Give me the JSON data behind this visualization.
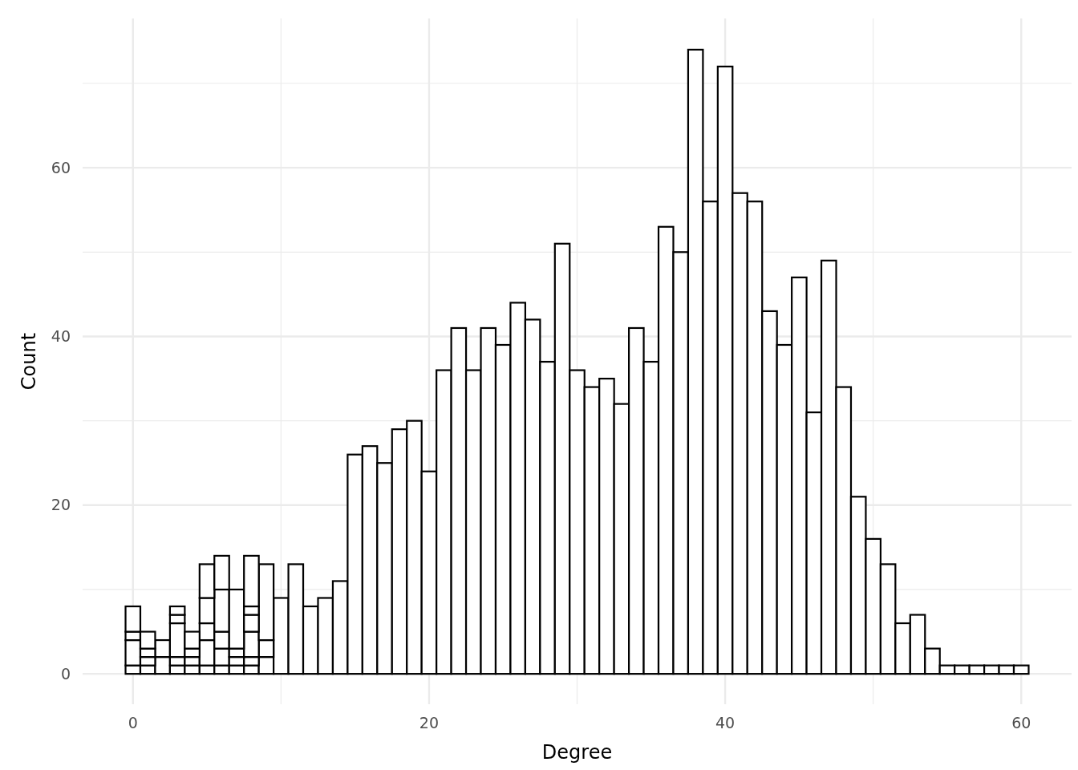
{
  "chart_data": {
    "type": "bar",
    "stacked": true,
    "xlabel": "Degree",
    "ylabel": "Count",
    "x": [
      0,
      1,
      2,
      3,
      4,
      5,
      6,
      7,
      8,
      9,
      10,
      11,
      12,
      13,
      14,
      15,
      16,
      17,
      18,
      19,
      20,
      21,
      22,
      23,
      24,
      25,
      26,
      27,
      28,
      29,
      30,
      31,
      32,
      33,
      34,
      35,
      36,
      37,
      38,
      39,
      40,
      41,
      42,
      43,
      44,
      45,
      46,
      47,
      48,
      49,
      50,
      51,
      52,
      53,
      54,
      55,
      56,
      57,
      58,
      59,
      60
    ],
    "series": [
      {
        "color": "#ffffff",
        "values": [
          1,
          1,
          2,
          1,
          1,
          1,
          1,
          1,
          1,
          2,
          9,
          13,
          8,
          9,
          11,
          26,
          27,
          25,
          29,
          30,
          24,
          36,
          41,
          36,
          41,
          39,
          44,
          42,
          37,
          51,
          36,
          34,
          35,
          32,
          41,
          37,
          53,
          50,
          74,
          56,
          72,
          57,
          56,
          43,
          39,
          47,
          31,
          49,
          34,
          21,
          16,
          13,
          6,
          7,
          3,
          1,
          1,
          1,
          1,
          1,
          1
        ]
      },
      {
        "color": "#ffffff",
        "values": [
          3,
          1,
          2,
          1,
          1,
          3,
          2,
          1,
          1,
          2,
          null,
          null,
          null,
          null,
          null,
          null,
          null,
          null,
          null,
          null,
          null,
          null,
          null,
          null,
          null,
          null,
          null,
          null,
          null,
          null,
          null,
          null,
          null,
          null,
          null,
          null,
          null,
          null,
          null,
          null,
          null,
          null,
          null,
          null,
          null,
          null,
          null,
          null,
          null,
          null,
          null,
          null,
          null,
          null,
          null,
          null,
          null,
          null,
          null,
          null,
          null
        ]
      },
      {
        "color": "#ffffff",
        "values": [
          1,
          1,
          null,
          4,
          1,
          2,
          2,
          1,
          3,
          9,
          null,
          null,
          null,
          null,
          null,
          null,
          null,
          null,
          null,
          null,
          null,
          null,
          null,
          null,
          null,
          null,
          null,
          null,
          null,
          null,
          null,
          null,
          null,
          null,
          null,
          null,
          null,
          null,
          null,
          null,
          null,
          null,
          null,
          null,
          null,
          null,
          null,
          null,
          null,
          null,
          null,
          null,
          null,
          null,
          null,
          null,
          null,
          null,
          null,
          null,
          null
        ]
      },
      {
        "color": "#ffffff",
        "values": [
          3,
          2,
          null,
          1,
          2,
          3,
          5,
          7,
          2,
          null,
          null,
          null,
          null,
          null,
          null,
          null,
          null,
          null,
          null,
          null,
          null,
          null,
          null,
          null,
          null,
          null,
          null,
          null,
          null,
          null,
          null,
          null,
          null,
          null,
          null,
          null,
          null,
          null,
          null,
          null,
          null,
          null,
          null,
          null,
          null,
          null,
          null,
          null,
          null,
          null,
          null,
          null,
          null,
          null,
          null,
          null,
          null,
          null,
          null,
          null,
          null
        ]
      },
      {
        "color": "#ffffff",
        "values": [
          null,
          null,
          null,
          1,
          null,
          4,
          4,
          null,
          1,
          null,
          null,
          null,
          null,
          null,
          null,
          null,
          null,
          null,
          null,
          null,
          null,
          null,
          null,
          null,
          null,
          null,
          null,
          null,
          null,
          null,
          null,
          null,
          null,
          null,
          null,
          null,
          null,
          null,
          null,
          null,
          null,
          null,
          null,
          null,
          null,
          null,
          null,
          null,
          null,
          null,
          null,
          null,
          null,
          null,
          null,
          null,
          null,
          null,
          null,
          null,
          null
        ]
      },
      {
        "color": "#ffffff",
        "values": [
          null,
          null,
          null,
          null,
          null,
          null,
          null,
          null,
          6,
          null,
          null,
          null,
          null,
          null,
          null,
          null,
          null,
          null,
          null,
          null,
          null,
          null,
          null,
          null,
          null,
          null,
          null,
          null,
          null,
          null,
          null,
          null,
          null,
          null,
          null,
          null,
          null,
          null,
          null,
          null,
          null,
          null,
          null,
          null,
          null,
          null,
          null,
          null,
          null,
          null,
          null,
          null,
          null,
          null,
          null,
          null,
          null,
          null,
          null,
          null,
          null
        ]
      }
    ],
    "xlim": [
      -3.4,
      63.4
    ],
    "xticks": [
      0,
      20,
      40,
      60
    ],
    "ylim": [
      -3.6,
      77.7
    ],
    "yticks": [
      0,
      20,
      40,
      60
    ],
    "grid": true
  }
}
